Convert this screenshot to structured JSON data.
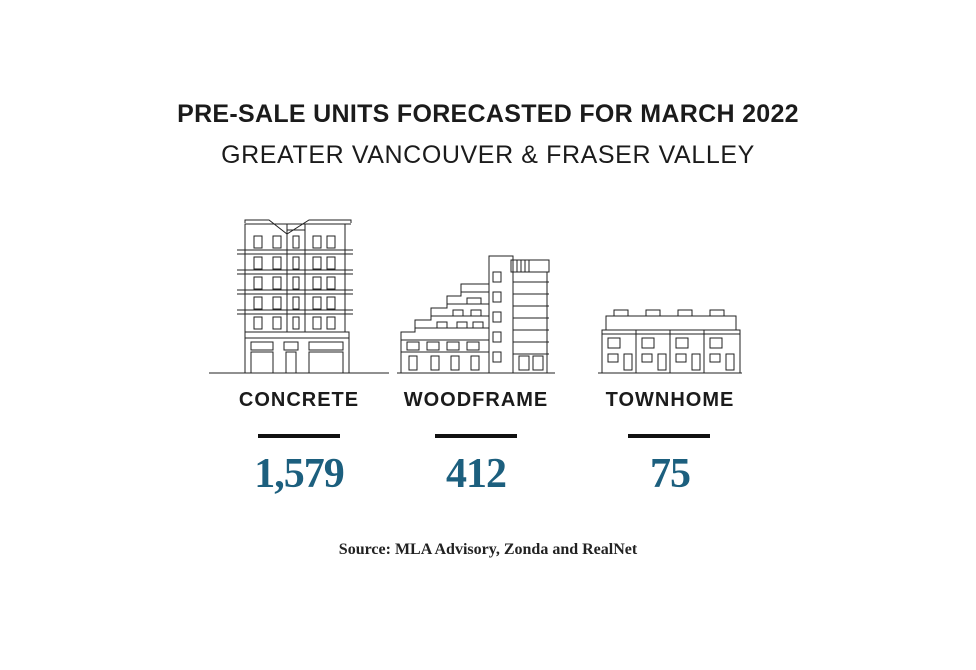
{
  "header": {
    "title": "PRE-SALE UNITS FORECASTED FOR MARCH 2022",
    "subtitle": "GREATER VANCOUVER & FRASER VALLEY"
  },
  "chart_data": {
    "type": "table",
    "title": "PRE-SALE UNITS FORECASTED FOR MARCH 2022",
    "subtitle": "GREATER VANCOUVER & FRASER VALLEY",
    "categories": [
      "CONCRETE",
      "WOODFRAME",
      "TOWNHOME"
    ],
    "values": [
      1579,
      412,
      75
    ],
    "value_labels": [
      "1,579",
      "412",
      "75"
    ],
    "icons": [
      "concrete-tower-icon",
      "woodframe-building-icon",
      "townhome-row-icon"
    ],
    "accent_color": "#1c5f7e"
  },
  "footer": {
    "source": "Source: MLA Advisory, Zonda and RealNet"
  }
}
